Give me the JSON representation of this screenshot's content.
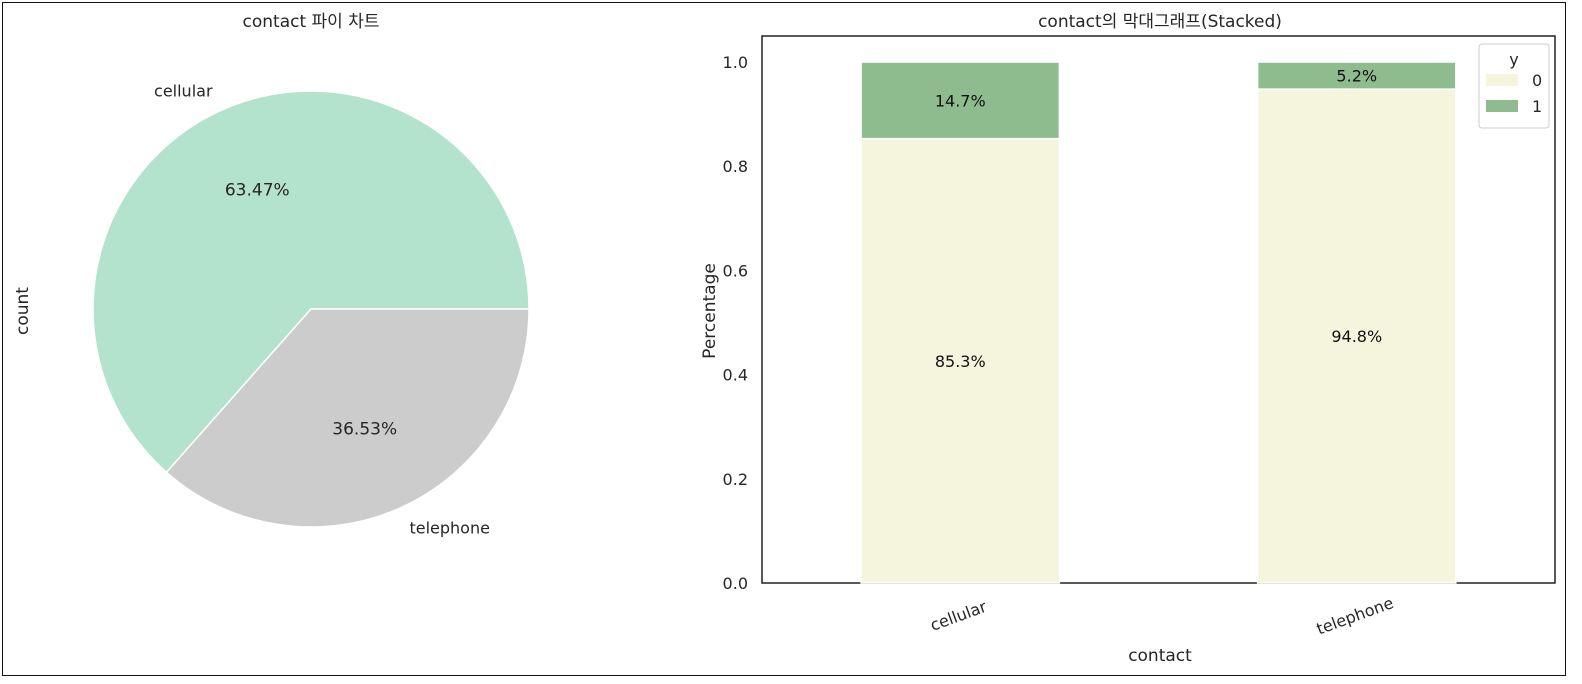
{
  "chart_data": [
    {
      "type": "pie",
      "title": "contact 파이 차트",
      "ylabel": "count",
      "labels": [
        "cellular",
        "telephone"
      ],
      "values": [
        63.47,
        36.53
      ],
      "pct_labels": [
        "63.47%",
        "36.53%"
      ],
      "colors": [
        "#b3e2cd",
        "#cccccc"
      ]
    },
    {
      "type": "bar",
      "stacked": true,
      "title": "contact의 막대그래프(Stacked)",
      "xlabel": "contact",
      "ylabel": "Percentage",
      "categories": [
        "cellular",
        "telephone"
      ],
      "ylim": [
        0,
        1.05
      ],
      "yticks": [
        "0.0",
        "0.2",
        "0.4",
        "0.6",
        "0.8",
        "1.0"
      ],
      "series": [
        {
          "name": "0",
          "values": [
            0.853,
            0.948
          ],
          "labels": [
            "85.3%",
            "94.8%"
          ],
          "color": "#f4f5dc"
        },
        {
          "name": "1",
          "values": [
            0.147,
            0.052
          ],
          "labels": [
            "14.7%",
            "5.2%"
          ],
          "color": "#8fbc8f"
        }
      ],
      "legend": {
        "title": "y",
        "position": "top-right"
      }
    }
  ]
}
